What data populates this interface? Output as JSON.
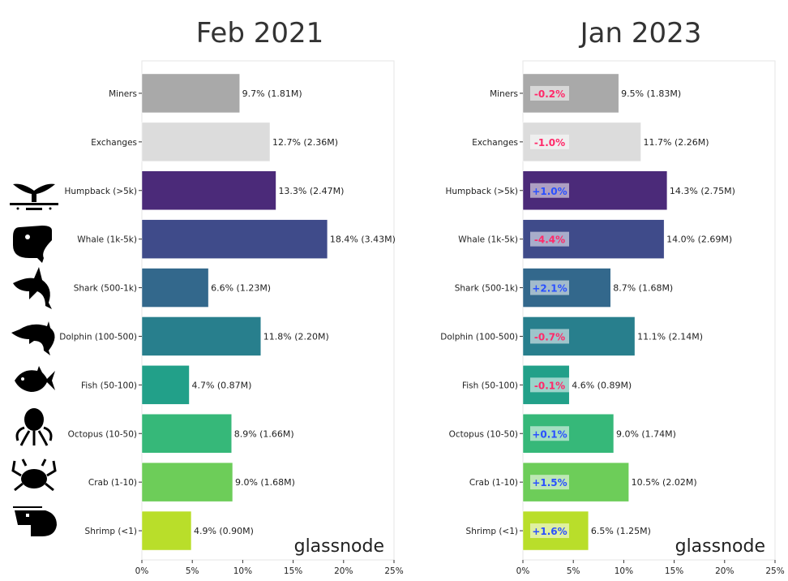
{
  "chart_data": [
    {
      "type": "bar",
      "orientation": "horizontal",
      "title": "Feb 2021",
      "categories": [
        "Miners",
        "Exchanges",
        "Humpback (>5k)",
        "Whale (1k-5k)",
        "Shark (500-1k)",
        "Dolphin (100-500)",
        "Fish (50-100)",
        "Octopus (10-50)",
        "Crab (1-10)",
        "Shrimp (<1)"
      ],
      "values": [
        9.7,
        12.7,
        13.3,
        18.4,
        6.6,
        11.8,
        4.7,
        8.9,
        9.0,
        4.9
      ],
      "data_labels": [
        "9.7% (1.81M)",
        "12.7% (2.36M)",
        "13.3% (2.47M)",
        "18.4% (3.43M)",
        "6.6% (1.23M)",
        "11.8% (2.20M)",
        "4.7% (0.87M)",
        "8.9% (1.66M)",
        "9.0% (1.68M)",
        "4.9% (0.90M)"
      ],
      "xlim": [
        0,
        25
      ],
      "x_ticks": [
        "0%",
        "5%",
        "10%",
        "15%",
        "20%",
        "25%"
      ],
      "watermark": "glassnode"
    },
    {
      "type": "bar",
      "orientation": "horizontal",
      "title": "Jan 2023",
      "categories": [
        "Miners",
        "Exchanges",
        "Humpback (>5k)",
        "Whale (1k-5k)",
        "Shark (500-1k)",
        "Dolphin (100-500)",
        "Fish (50-100)",
        "Octopus (10-50)",
        "Crab (1-10)",
        "Shrimp (<1)"
      ],
      "values": [
        9.5,
        11.7,
        14.3,
        14.0,
        8.7,
        11.1,
        4.6,
        9.0,
        10.5,
        6.5
      ],
      "data_labels": [
        "9.5% (1.83M)",
        "11.7% (2.26M)",
        "14.3% (2.75M)",
        "14.0% (2.69M)",
        "8.7% (1.68M)",
        "11.1% (2.14M)",
        "4.6% (0.89M)",
        "9.0% (1.74M)",
        "10.5% (2.02M)",
        "6.5% (1.25M)"
      ],
      "changes": [
        "-0.2%",
        "-1.0%",
        "+1.0%",
        "-4.4%",
        "+2.1%",
        "-0.7%",
        "-0.1%",
        "+0.1%",
        "+1.5%",
        "+1.6%"
      ],
      "xlim": [
        0,
        25
      ],
      "x_ticks": [
        "0%",
        "5%",
        "10%",
        "15%",
        "20%",
        "25%"
      ],
      "watermark": "glassnode"
    }
  ],
  "colors": {
    "bars": [
      "#a9a9a9",
      "#dcdcdc",
      "#4b2a79",
      "#3f4b8a",
      "#33688c",
      "#287f8d",
      "#22a089",
      "#36b879",
      "#6dcd59",
      "#b9de2a"
    ],
    "negative": "#ff2a6a",
    "positive": "#2a50ff"
  },
  "icons": [
    "humpback-tail-icon",
    "whale-icon",
    "shark-icon",
    "dolphin-icon",
    "fish-icon",
    "octopus-icon",
    "crab-icon",
    "shrimp-icon"
  ]
}
